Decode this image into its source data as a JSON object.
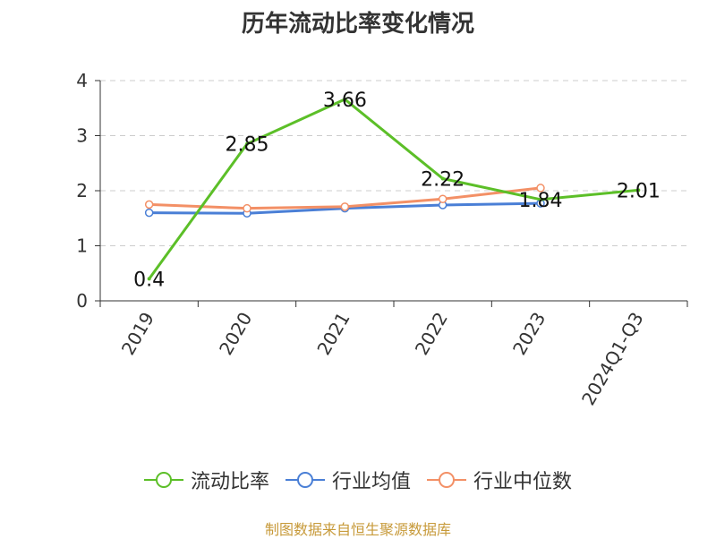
{
  "chart_data": {
    "type": "line",
    "title": "历年流动比率变化情况",
    "categories": [
      "2019",
      "2020",
      "2021",
      "2022",
      "2023",
      "2024Q1-Q3"
    ],
    "ylim": [
      0,
      4
    ],
    "yticks": [
      0,
      1,
      2,
      3,
      4
    ],
    "grid": true,
    "legend_position": "bottom",
    "series": [
      {
        "name": "流动比率",
        "color": "#5cbf28",
        "values": [
          0.4,
          2.85,
          3.66,
          2.22,
          1.84,
          2.01
        ],
        "labels": [
          "0.4",
          "2.85",
          "3.66",
          "2.22",
          "1.84",
          "2.01"
        ]
      },
      {
        "name": "行业均值",
        "color": "#4a7fd6",
        "values": [
          1.6,
          1.59,
          1.68,
          1.74,
          1.77,
          null
        ]
      },
      {
        "name": "行业中位数",
        "color": "#f39066",
        "values": [
          1.75,
          1.68,
          1.71,
          1.85,
          2.05,
          null
        ]
      }
    ]
  },
  "source": "制图数据来自恒生聚源数据库"
}
